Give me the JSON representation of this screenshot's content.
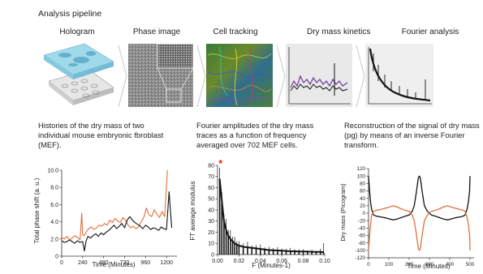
{
  "pipeline": {
    "title": "Analysis pipeline",
    "stages": [
      {
        "label": "Hologram"
      },
      {
        "label": "Phase image"
      },
      {
        "label": "Cell tracking"
      },
      {
        "label": "Dry mass kinetics"
      },
      {
        "label": "Fourier analysis"
      }
    ]
  },
  "panels": {
    "left": {
      "caption": "Histories of the dry mass of two individual mouse embryonic fbroblast (MEF)."
    },
    "middle": {
      "caption": "Fourier amplitudes of the dry mass traces as a function of frequency averaged over 702 MEF cells."
    },
    "right": {
      "caption": "Reconstruction of the signal of dry mass (pg) by means of an inverse Fourier transform."
    }
  },
  "colors": {
    "orange": "#e0703a",
    "black": "#111111",
    "purple": "#6a3d9a",
    "red_star": "#e03020"
  },
  "chart_data": [
    {
      "type": "line",
      "xlabel": "Time (Minutes)",
      "ylabel": "Total phase shift (a. u.)",
      "xlim": [
        0,
        1320
      ],
      "ylim": [
        0,
        10
      ],
      "xticks": [
        "0",
        "240",
        "480",
        "720",
        "960",
        "1200"
      ],
      "yticks": [
        "0",
        "2.0",
        "4.0",
        "6.0",
        "8.0",
        "10.0"
      ],
      "series": [
        {
          "color": "orange",
          "x": [
            0,
            30,
            60,
            90,
            120,
            150,
            180,
            210,
            230,
            240,
            260,
            280,
            310,
            340,
            370,
            400,
            430,
            460,
            490,
            520,
            550,
            580,
            610,
            640,
            670,
            700,
            730,
            760,
            790,
            820,
            850,
            880,
            910,
            940,
            970,
            1000,
            1030,
            1060,
            1090,
            1120,
            1150,
            1180,
            1210
          ],
          "y": [
            2.2,
            2.0,
            2.3,
            1.9,
            2.1,
            2.4,
            2.2,
            1.9,
            5.0,
            2.5,
            2.4,
            2.8,
            3.2,
            3.4,
            3.1,
            3.3,
            3.6,
            3.5,
            3.8,
            3.6,
            4.2,
            3.9,
            4.4,
            4.1,
            3.9,
            4.5,
            4.2,
            3.6,
            3.3,
            3.5,
            3.2,
            3.4,
            4.0,
            4.5,
            5.6,
            4.8,
            4.6,
            5.4,
            4.9,
            4.5,
            5.2,
            4.6,
            10.0
          ]
        },
        {
          "color": "black",
          "x": [
            0,
            30,
            60,
            90,
            120,
            150,
            180,
            210,
            240,
            260,
            280,
            300,
            330,
            360,
            390,
            420,
            450,
            480,
            510,
            540,
            570,
            600,
            630,
            660,
            690,
            720,
            750,
            780,
            810,
            840,
            870,
            900,
            930,
            960,
            990,
            1020,
            1050,
            1080,
            1110,
            1140,
            1170,
            1200,
            1230,
            1260
          ],
          "y": [
            1.8,
            1.6,
            1.7,
            1.9,
            1.7,
            1.5,
            1.8,
            1.6,
            1.7,
            0.6,
            1.8,
            2.3,
            2.1,
            2.4,
            2.6,
            2.3,
            2.7,
            2.5,
            2.8,
            3.0,
            3.3,
            3.6,
            3.2,
            3.5,
            3.8,
            3.3,
            4.2,
            4.6,
            4.2,
            3.9,
            3.7,
            3.5,
            3.2,
            3.6,
            3.4,
            3.1,
            3.3,
            3.2,
            3.0,
            3.4,
            3.2,
            3.1,
            7.5,
            3.3
          ]
        }
      ]
    },
    {
      "type": "bar",
      "xlabel": "F (Minutes-1)",
      "ylabel": "FT average modulus",
      "xlim": [
        0,
        0.1
      ],
      "ylim": [
        0,
        80
      ],
      "xticks": [
        "0.00",
        "0.02",
        "0.04",
        "0.06",
        "0.08",
        "0.10"
      ],
      "yticks": [
        "0",
        "10",
        "20",
        "30",
        "40",
        "50",
        "60",
        "70",
        "80"
      ],
      "annotation": "*",
      "x": [
        0.002,
        0.004,
        0.006,
        0.008,
        0.01,
        0.012,
        0.014,
        0.016,
        0.018,
        0.02,
        0.024,
        0.028,
        0.032,
        0.036,
        0.04,
        0.044,
        0.048,
        0.052,
        0.056,
        0.06,
        0.064,
        0.068,
        0.072,
        0.076,
        0.08,
        0.084,
        0.088,
        0.092,
        0.096,
        0.099
      ],
      "values": [
        68,
        48,
        30,
        22,
        17,
        14,
        12,
        10,
        9,
        8,
        7,
        6.5,
        6,
        5.5,
        5,
        4.5,
        4,
        3.8,
        3.6,
        3.4,
        3.2,
        3.0,
        2.9,
        2.8,
        2.7,
        2.6,
        2.5,
        2.4,
        2.3,
        2.2
      ],
      "error": [
        10,
        8,
        6,
        10,
        5,
        8,
        4,
        6,
        3,
        4,
        3,
        5,
        2,
        3,
        4,
        2,
        3,
        2,
        3,
        2,
        2,
        3,
        2,
        2,
        2,
        1,
        2,
        1,
        3,
        8
      ]
    },
    {
      "type": "line",
      "xlabel": "Time (Minutes)",
      "ylabel": "Dry mass (Picogram)",
      "xlim": [
        0,
        520
      ],
      "ylim": [
        -120,
        120
      ],
      "xticks": [
        "0",
        "100",
        "200",
        "300",
        "400",
        "500"
      ],
      "yticks": [
        "-120",
        "-100",
        "-80",
        "-60",
        "-40",
        "-20",
        "0",
        "20",
        "40",
        "60",
        "80",
        "100",
        "120"
      ],
      "series": [
        {
          "color": "black",
          "x": [
            0,
            5,
            10,
            15,
            25,
            40,
            60,
            80,
            100,
            120,
            140,
            160,
            180,
            200,
            215,
            225,
            235,
            245,
            250,
            255,
            265,
            275,
            290,
            310,
            330,
            350,
            370,
            390,
            410,
            430,
            450,
            465,
            475,
            485,
            492,
            498,
            500
          ],
          "y": [
            100,
            60,
            30,
            10,
            -5,
            -8,
            -10,
            -12,
            -15,
            -18,
            -16,
            -12,
            -8,
            -5,
            5,
            20,
            55,
            95,
            100,
            95,
            55,
            20,
            5,
            -5,
            -8,
            -12,
            -16,
            -18,
            -15,
            -12,
            -10,
            -8,
            -5,
            10,
            30,
            60,
            100
          ]
        },
        {
          "color": "orange",
          "x": [
            0,
            5,
            10,
            15,
            25,
            40,
            60,
            80,
            100,
            120,
            140,
            160,
            180,
            200,
            215,
            225,
            235,
            245,
            250,
            255,
            265,
            275,
            290,
            310,
            330,
            350,
            370,
            390,
            410,
            430,
            450,
            465,
            475,
            485,
            492,
            498,
            500
          ],
          "y": [
            -100,
            -60,
            -30,
            -5,
            5,
            8,
            10,
            13,
            16,
            20,
            17,
            12,
            8,
            5,
            -5,
            -20,
            -55,
            -95,
            -100,
            -95,
            -55,
            -20,
            -5,
            5,
            8,
            12,
            17,
            20,
            16,
            13,
            10,
            8,
            5,
            -10,
            -30,
            -60,
            -100
          ]
        }
      ]
    }
  ]
}
